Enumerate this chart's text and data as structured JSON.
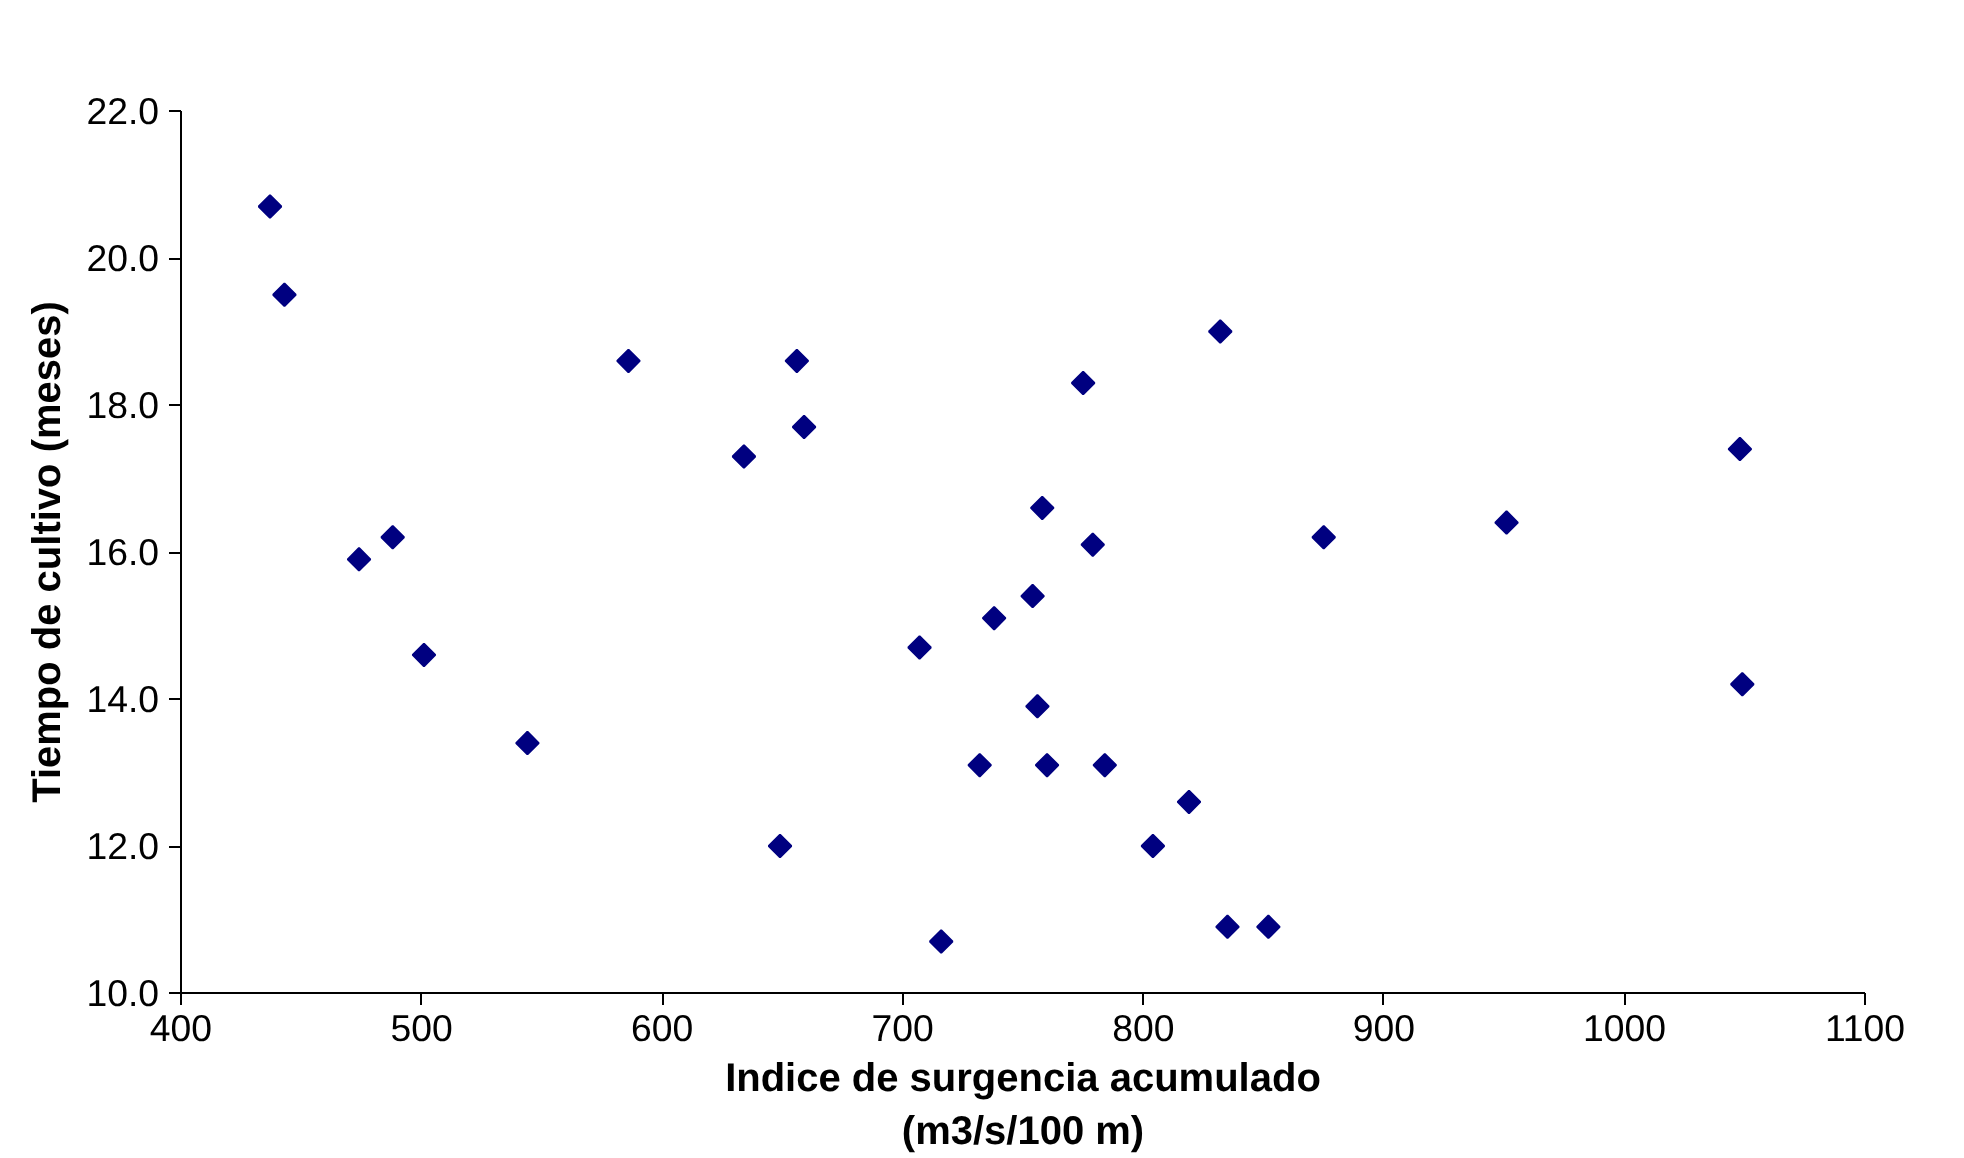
{
  "chart_data": {
    "type": "scatter",
    "xlabel": "Indice de surgencia acumulado\n(m3/s/100 m)",
    "ylabel": "Tiempo de cultivo (meses)",
    "x": [
      437,
      443,
      474,
      488,
      501,
      544,
      586,
      634,
      656,
      659,
      649,
      707,
      716,
      732,
      738,
      754,
      758,
      756,
      760,
      775,
      779,
      784,
      804,
      819,
      832,
      835,
      852,
      875,
      951,
      1048,
      1049
    ],
    "values": [
      20.7,
      19.5,
      15.9,
      16.2,
      14.6,
      13.4,
      18.6,
      17.3,
      18.6,
      17.7,
      12.0,
      14.7,
      10.7,
      13.1,
      15.1,
      15.4,
      16.6,
      13.9,
      13.1,
      18.3,
      16.1,
      13.1,
      12.0,
      12.6,
      19.0,
      10.9,
      10.9,
      16.2,
      16.4,
      17.4,
      14.2
    ],
    "color": "#000080",
    "marker": "diamond",
    "grid": false,
    "xlim": [
      400,
      1100
    ],
    "xticks": [
      400,
      500,
      600,
      700,
      800,
      900,
      1000,
      1100
    ],
    "ylim": [
      10,
      22
    ],
    "yticks": [
      {
        "value": 10,
        "label": "10.0"
      },
      {
        "value": 12,
        "label": "12.0"
      },
      {
        "value": 14,
        "label": "14.0"
      },
      {
        "value": 16,
        "label": "16.0"
      },
      {
        "value": 18,
        "label": "18.0"
      },
      {
        "value": 20,
        "label": "20.0"
      },
      {
        "value": 22,
        "label": "22.0"
      }
    ]
  }
}
